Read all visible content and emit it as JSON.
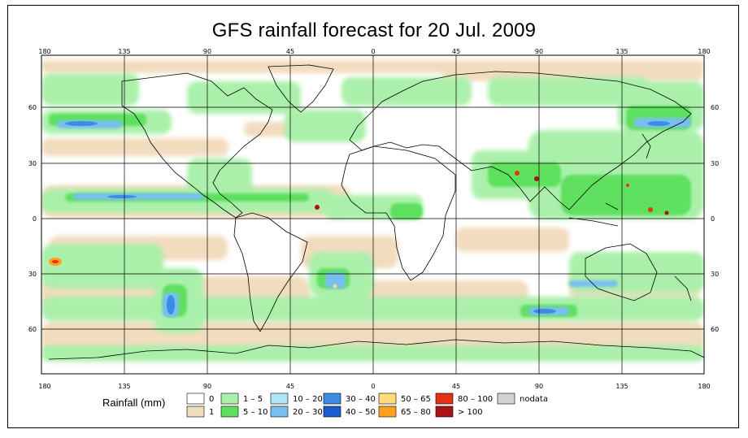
{
  "title": "GFS rainfall forecast for 20 Jul. 2009",
  "axes": {
    "lon_labels": [
      "180",
      "135",
      "90",
      "45",
      "0",
      "45",
      "90",
      "135",
      "180"
    ],
    "lat_labels": [
      "60",
      "30",
      "0",
      "30",
      "60"
    ]
  },
  "legend": {
    "title": "Rainfall (mm)",
    "items": [
      {
        "label": "0",
        "color": "#ffffff"
      },
      {
        "label": "1",
        "color": "#f2dcbe"
      },
      {
        "label": "1 – 5",
        "color": "#aaf0aa"
      },
      {
        "label": "5 – 10",
        "color": "#5ee05e"
      },
      {
        "label": "10 – 20",
        "color": "#aee6f6"
      },
      {
        "label": "20 – 30",
        "color": "#78bff0"
      },
      {
        "label": "30 – 40",
        "color": "#3c8ce6"
      },
      {
        "label": "40 – 50",
        "color": "#1e5ad2"
      },
      {
        "label": "50 – 65",
        "color": "#ffdc78"
      },
      {
        "label": "65 – 80",
        "color": "#ffa01e"
      },
      {
        "label": "80 – 100",
        "color": "#e63214"
      },
      {
        "label": "> 100",
        "color": "#aa1414"
      },
      {
        "label": "nodata",
        "color": "#d2d2d2"
      }
    ]
  }
}
